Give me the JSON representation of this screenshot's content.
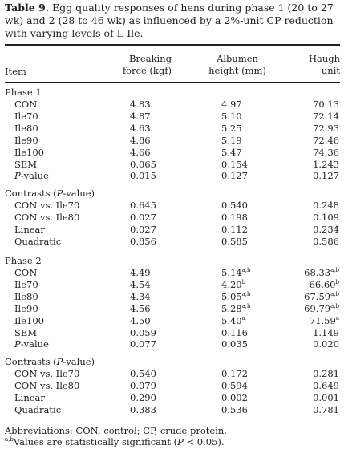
{
  "caption": {
    "label": "Table 9.",
    "text": " Egg quality responses of hens during phase 1 (20 to 27 wk) and 2 (28 to 46 wk) as influenced by a 2%-unit CP reduction with varying levels of L-Ile."
  },
  "header": {
    "item": "Item",
    "col1": [
      "Breaking",
      "force (kgf)"
    ],
    "col2": [
      "Albumen",
      "height (mm)"
    ],
    "col3": [
      "Haugh",
      "unit"
    ]
  },
  "sections": [
    {
      "title": "Phase 1",
      "rows": [
        {
          "label": "CON",
          "v1": "4.83",
          "v2": "4.97",
          "v3": "70.13",
          "s2": "",
          "s3": ""
        },
        {
          "label": "Ile70",
          "v1": "4.87",
          "v2": "5.10",
          "v3": "72.14",
          "s2": "",
          "s3": ""
        },
        {
          "label": "Ile80",
          "v1": "4.63",
          "v2": "5.25",
          "v3": "72.93",
          "s2": "",
          "s3": ""
        },
        {
          "label": "Ile90",
          "v1": "4.86",
          "v2": "5.19",
          "v3": "72.46",
          "s2": "",
          "s3": ""
        },
        {
          "label": "Ile100",
          "v1": "4.66",
          "v2": "5.47",
          "v3": "74.36",
          "s2": "",
          "s3": ""
        },
        {
          "label": "SEM",
          "v1": "0.065",
          "v2": "0.154",
          "v3": "1.243",
          "s2": "",
          "s3": ""
        },
        {
          "label": "P-value",
          "v1": "0.015",
          "v2": "0.127",
          "v3": "0.127",
          "s2": "",
          "s3": "",
          "italic_prefix": "P"
        }
      ]
    },
    {
      "title": "Contrasts (P-value)",
      "rows": [
        {
          "label": "CON vs. Ile70",
          "v1": "0.645",
          "v2": "0.540",
          "v3": "0.248",
          "s2": "",
          "s3": ""
        },
        {
          "label": "CON vs. Ile80",
          "v1": "0.027",
          "v2": "0.198",
          "v3": "0.109",
          "s2": "",
          "s3": ""
        },
        {
          "label": "Linear",
          "v1": "0.027",
          "v2": "0.112",
          "v3": "0.234",
          "s2": "",
          "s3": ""
        },
        {
          "label": "Quadratic",
          "v1": "0.856",
          "v2": "0.585",
          "v3": "0.586",
          "s2": "",
          "s3": ""
        }
      ]
    },
    {
      "title": "Phase 2",
      "rows": [
        {
          "label": "CON",
          "v1": "4.49",
          "v2": "5.14",
          "v3": "68.33",
          "s2": "a,b",
          "s3": "a,b"
        },
        {
          "label": "Ile70",
          "v1": "4.54",
          "v2": "4.20",
          "v3": "66.60",
          "s2": "b",
          "s3": "b"
        },
        {
          "label": "Ile80",
          "v1": "4.34",
          "v2": "5.05",
          "v3": "67.59",
          "s2": "a,b",
          "s3": "a,b"
        },
        {
          "label": "Ile90",
          "v1": "4.56",
          "v2": "5.28",
          "v3": "69.79",
          "s2": "a,b",
          "s3": "a,b"
        },
        {
          "label": "Ile100",
          "v1": "4.50",
          "v2": "5.40",
          "v3": "71.59",
          "s2": "a",
          "s3": "a"
        },
        {
          "label": "SEM",
          "v1": "0.059",
          "v2": "0.116",
          "v3": "1.149",
          "s2": "",
          "s3": ""
        },
        {
          "label": "P-value",
          "v1": "0.077",
          "v2": "0.035",
          "v3": "0.020",
          "s2": "",
          "s3": "",
          "italic_prefix": "P"
        }
      ]
    },
    {
      "title": "Contrasts (P-value)",
      "rows": [
        {
          "label": "CON vs. Ile70",
          "v1": "0.540",
          "v2": "0.172",
          "v3": "0.281",
          "s2": "",
          "s3": ""
        },
        {
          "label": "CON vs. Ile80",
          "v1": "0.079",
          "v2": "0.594",
          "v3": "0.649",
          "s2": "",
          "s3": ""
        },
        {
          "label": "Linear",
          "v1": "0.290",
          "v2": "0.002",
          "v3": "0.001",
          "s2": "",
          "s3": ""
        },
        {
          "label": "Quadratic",
          "v1": "0.383",
          "v2": "0.536",
          "v3": "0.781",
          "s2": "",
          "s3": ""
        }
      ]
    }
  ],
  "footnotes": {
    "abbrev": "Abbreviations: CON, control; CP, crude protein.",
    "sig_sup": "a,b",
    "sig_text": "Values are statistically significant (P < 0.05)."
  }
}
